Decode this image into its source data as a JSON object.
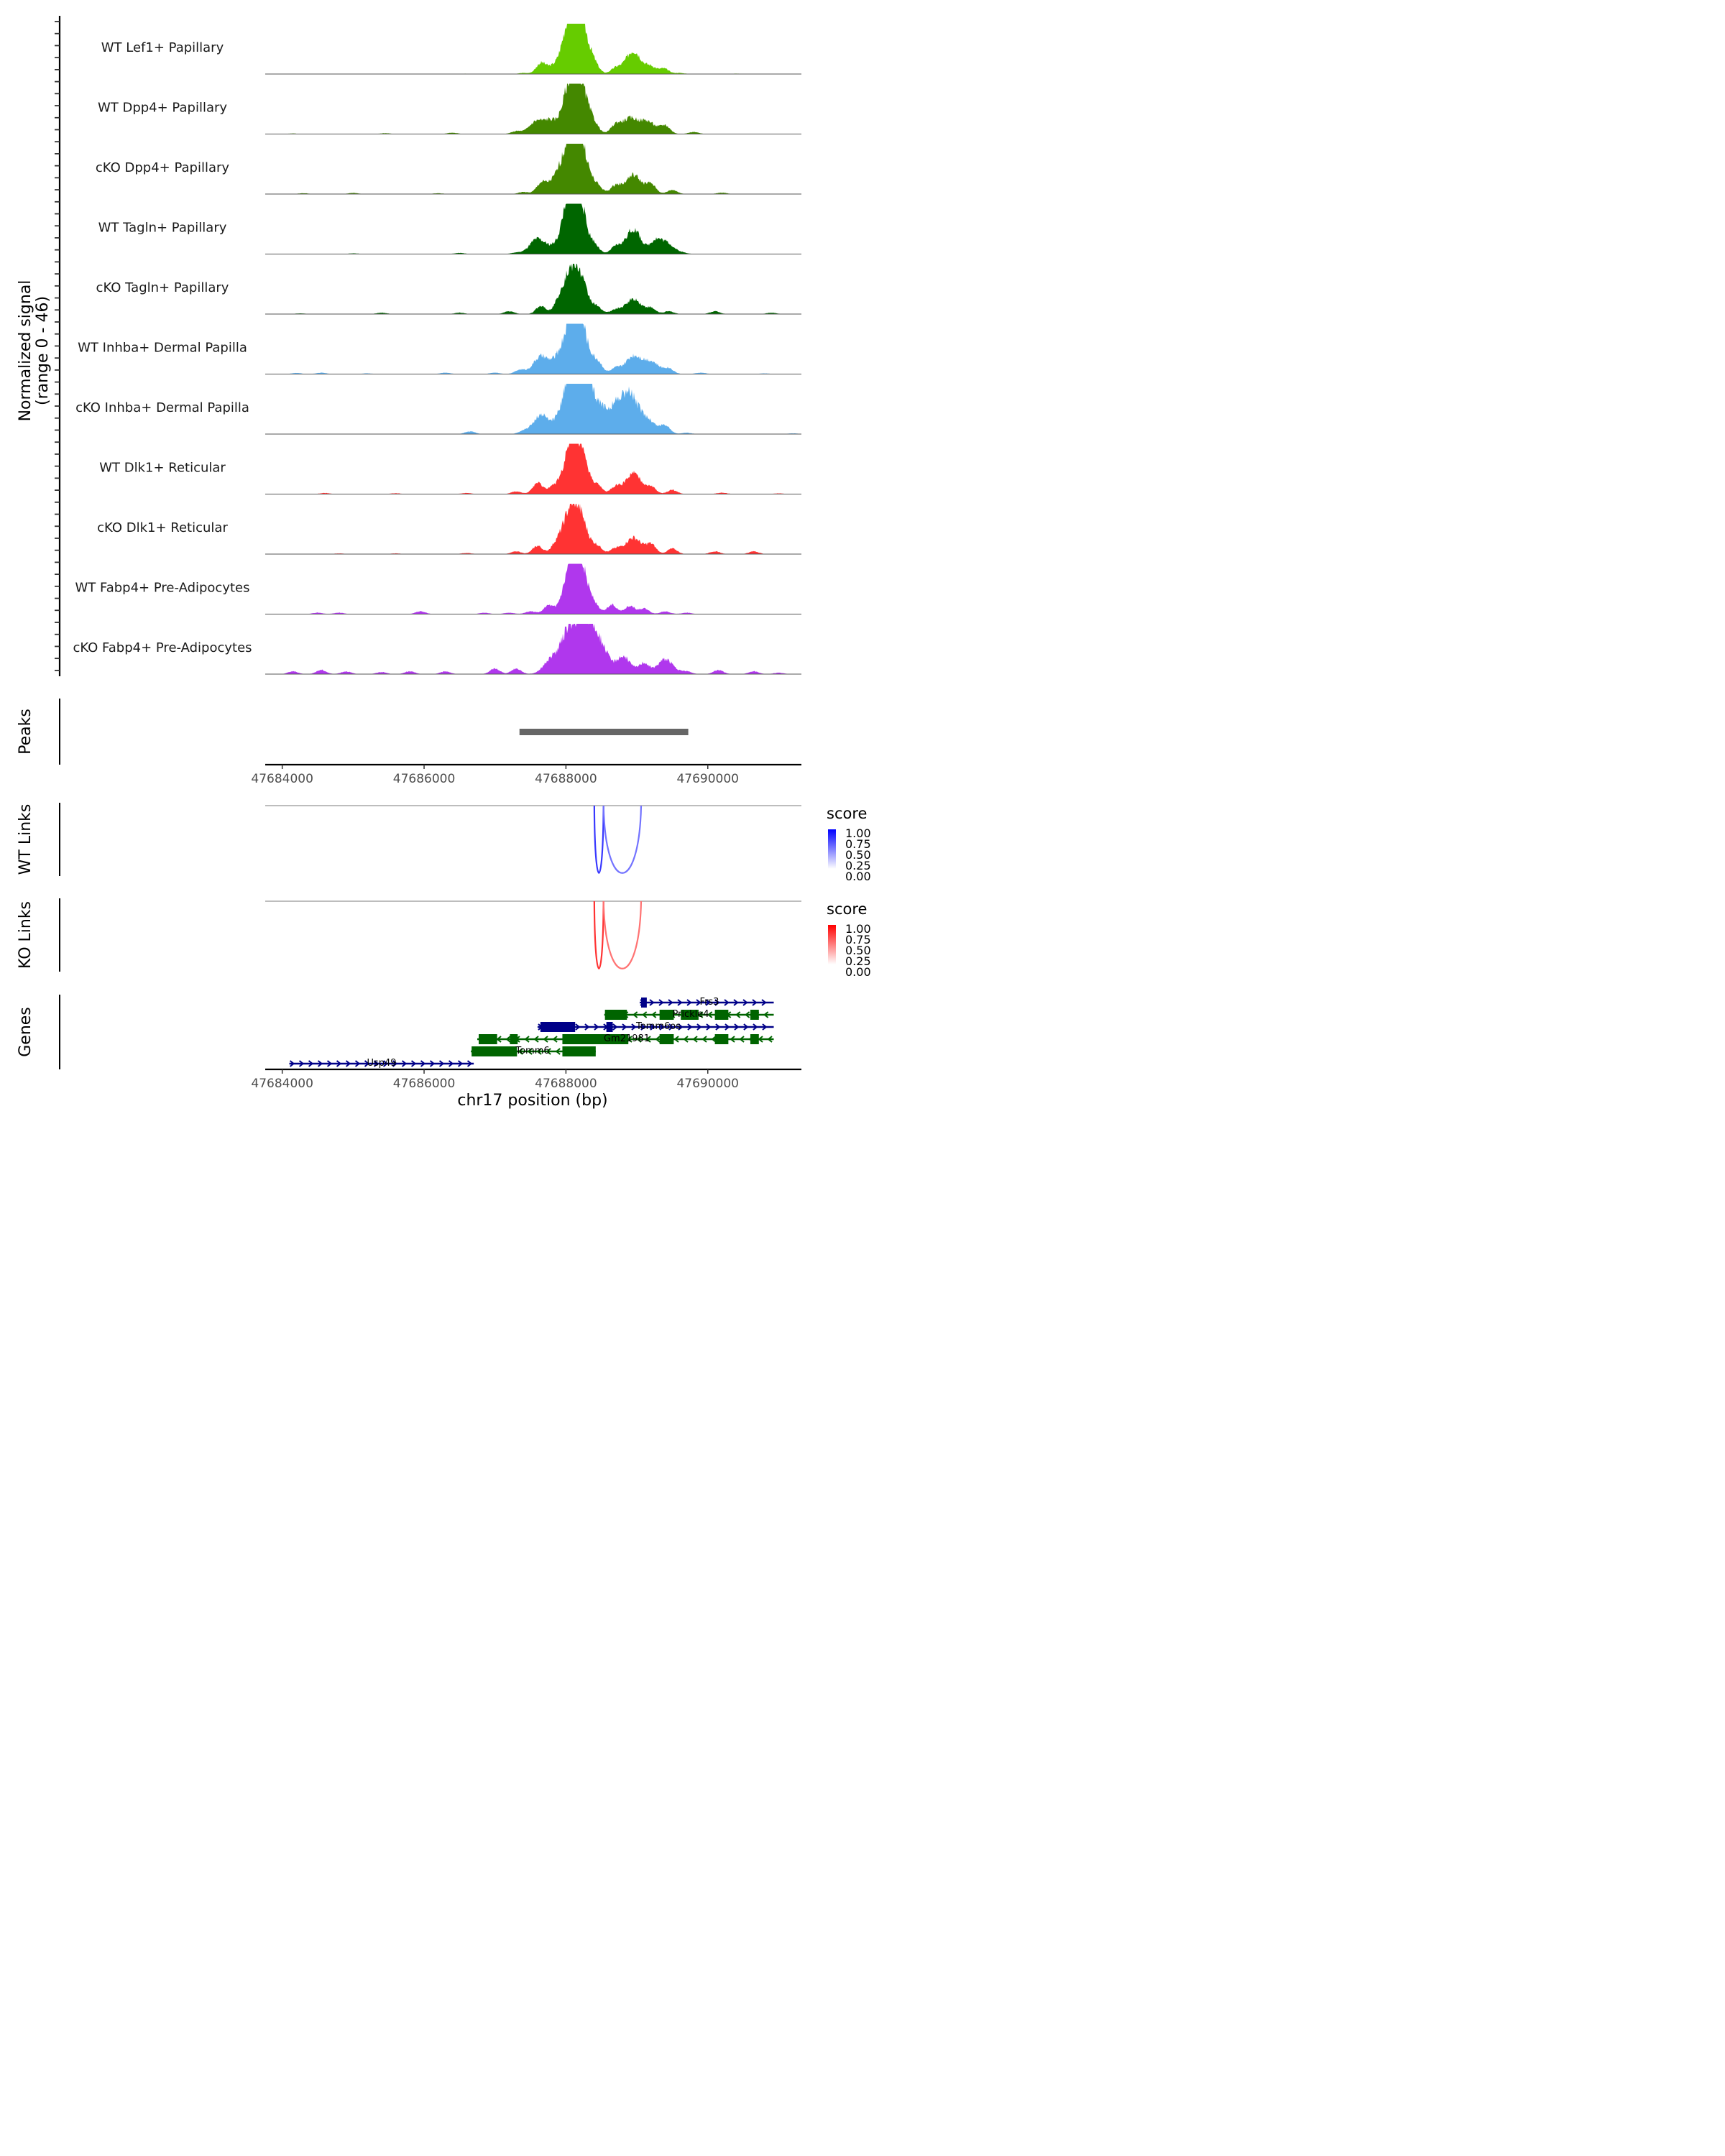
{
  "chart_data": {
    "type": "area",
    "title": "",
    "ylabel": "Normalized signal\n(range 0 - 46)",
    "ylabel_lines": [
      "Normalized signal",
      "(range 0 - 46)"
    ],
    "ylim": [
      0,
      46
    ],
    "xlabel": "chr17 position (bp)",
    "xlim": [
      47683760,
      47691320
    ],
    "x_ticks": [
      47684000,
      47686000,
      47688000,
      47690000
    ],
    "x_tick_labels": [
      "47684000",
      "47686000",
      "47688000",
      "47690000"
    ],
    "coverage_tracks": [
      {
        "name": "WT Lef1+ Papillary",
        "color": "#66CC00",
        "peaks": [
          [
            47686600,
            0.3
          ],
          [
            47687400,
            0.8
          ],
          [
            47687650,
            8
          ],
          [
            47687800,
            3.5
          ],
          [
            47688050,
            33
          ],
          [
            47688200,
            36
          ],
          [
            47688400,
            5
          ],
          [
            47688700,
            4
          ],
          [
            47688950,
            17
          ],
          [
            47689200,
            5
          ],
          [
            47689380,
            4
          ],
          [
            47689600,
            0.8
          ],
          [
            47690400,
            0.3
          ]
        ]
      },
      {
        "name": "WT Dpp4+ Papillary",
        "color": "#448800",
        "peaks": [
          [
            47684150,
            0.4
          ],
          [
            47685450,
            0.6
          ],
          [
            47686400,
            1
          ],
          [
            47687300,
            2
          ],
          [
            47687600,
            10
          ],
          [
            47687780,
            7
          ],
          [
            47688050,
            30
          ],
          [
            47688200,
            32
          ],
          [
            47688400,
            5
          ],
          [
            47688700,
            6
          ],
          [
            47688900,
            11
          ],
          [
            47689150,
            9
          ],
          [
            47689400,
            6
          ],
          [
            47689800,
            1.5
          ]
        ]
      },
      {
        "name": "cKO Dpp4+ Papillary",
        "color": "#448800",
        "peaks": [
          [
            47684300,
            0.6
          ],
          [
            47685000,
            0.8
          ],
          [
            47686200,
            0.6
          ],
          [
            47687400,
            1.5
          ],
          [
            47687650,
            7
          ],
          [
            47687850,
            9
          ],
          [
            47688050,
            30
          ],
          [
            47688200,
            34
          ],
          [
            47688450,
            5
          ],
          [
            47688700,
            6
          ],
          [
            47688950,
            14
          ],
          [
            47689200,
            7
          ],
          [
            47689500,
            3
          ],
          [
            47690200,
            1
          ]
        ]
      },
      {
        "name": "WT Tagln+ Papillary",
        "color": "#006600",
        "peaks": [
          [
            47685000,
            0.5
          ],
          [
            47686500,
            0.8
          ],
          [
            47687300,
            1
          ],
          [
            47687600,
            11
          ],
          [
            47687800,
            3
          ],
          [
            47688050,
            28
          ],
          [
            47688150,
            41
          ],
          [
            47688400,
            6
          ],
          [
            47688700,
            5
          ],
          [
            47688950,
            18
          ],
          [
            47689250,
            7
          ],
          [
            47689400,
            9
          ],
          [
            47689650,
            0.8
          ]
        ]
      },
      {
        "name": "cKO Tagln+ Papillary",
        "color": "#006600",
        "peaks": [
          [
            47684250,
            0.5
          ],
          [
            47685400,
            1
          ],
          [
            47686500,
            1
          ],
          [
            47687200,
            2
          ],
          [
            47687650,
            6
          ],
          [
            47687900,
            5
          ],
          [
            47688050,
            24
          ],
          [
            47688200,
            22
          ],
          [
            47688450,
            4
          ],
          [
            47688700,
            3
          ],
          [
            47688950,
            11
          ],
          [
            47689200,
            4
          ],
          [
            47689450,
            2
          ],
          [
            47690100,
            2
          ],
          [
            47690900,
            1
          ]
        ]
      },
      {
        "name": "WT Inhba+ Dermal Papilla",
        "color": "#5DADEB",
        "peaks": [
          [
            47684200,
            0.8
          ],
          [
            47684550,
            1
          ],
          [
            47685200,
            0.5
          ],
          [
            47686300,
            1
          ],
          [
            47687000,
            1
          ],
          [
            47687350,
            3
          ],
          [
            47687650,
            13
          ],
          [
            47687850,
            5
          ],
          [
            47688050,
            30
          ],
          [
            47688200,
            34
          ],
          [
            47688450,
            8
          ],
          [
            47688700,
            4
          ],
          [
            47688950,
            13
          ],
          [
            47689200,
            9
          ],
          [
            47689450,
            4
          ],
          [
            47689900,
            1
          ],
          [
            47690800,
            0.5
          ]
        ]
      },
      {
        "name": "cKO Inhba+ Dermal Papilla",
        "color": "#5DADEB",
        "peaks": [
          [
            47686650,
            2
          ],
          [
            47687400,
            2
          ],
          [
            47687650,
            14
          ],
          [
            47687850,
            3
          ],
          [
            47688050,
            31
          ],
          [
            47688150,
            26
          ],
          [
            47688250,
            30
          ],
          [
            47688450,
            16
          ],
          [
            47688650,
            11
          ],
          [
            47688780,
            13
          ],
          [
            47688920,
            22
          ],
          [
            47689150,
            10
          ],
          [
            47689400,
            6
          ],
          [
            47689700,
            1
          ],
          [
            47691200,
            0.5
          ]
        ]
      },
      {
        "name": "WT Dlk1+ Reticular",
        "color": "#FF3333",
        "peaks": [
          [
            47684600,
            0.8
          ],
          [
            47685600,
            0.6
          ],
          [
            47686600,
            0.8
          ],
          [
            47687300,
            2
          ],
          [
            47687600,
            8
          ],
          [
            47687800,
            4
          ],
          [
            47688050,
            25
          ],
          [
            47688200,
            28
          ],
          [
            47688450,
            5
          ],
          [
            47688700,
            5
          ],
          [
            47688950,
            15
          ],
          [
            47689200,
            5
          ],
          [
            47689500,
            3
          ],
          [
            47690200,
            1
          ],
          [
            47691000,
            0.5
          ]
        ]
      },
      {
        "name": "cKO Dlk1+ Reticular",
        "color": "#FF3333",
        "peaks": [
          [
            47684800,
            0.5
          ],
          [
            47685600,
            0.5
          ],
          [
            47686600,
            0.8
          ],
          [
            47687300,
            2
          ],
          [
            47687600,
            6
          ],
          [
            47687850,
            5
          ],
          [
            47688050,
            26
          ],
          [
            47688200,
            23
          ],
          [
            47688450,
            5
          ],
          [
            47688700,
            4
          ],
          [
            47688950,
            12
          ],
          [
            47689200,
            7
          ],
          [
            47689500,
            4
          ],
          [
            47690100,
            2
          ],
          [
            47690650,
            2
          ]
        ]
      },
      {
        "name": "WT Fabp4+ Pre-Adipocytes",
        "color": "#B037ED",
        "peaks": [
          [
            47684500,
            1
          ],
          [
            47684800,
            1
          ],
          [
            47685950,
            2
          ],
          [
            47686850,
            1
          ],
          [
            47687200,
            1
          ],
          [
            47687500,
            2
          ],
          [
            47687750,
            6
          ],
          [
            47687950,
            3
          ],
          [
            47688100,
            30
          ],
          [
            47688200,
            27
          ],
          [
            47688400,
            5
          ],
          [
            47688650,
            7
          ],
          [
            47688900,
            6
          ],
          [
            47689100,
            4
          ],
          [
            47689400,
            2
          ],
          [
            47689700,
            1
          ]
        ]
      },
      {
        "name": "cKO Fabp4+ Pre-Adipocytes",
        "color": "#B037ED",
        "peaks": [
          [
            47684150,
            2
          ],
          [
            47684550,
            3
          ],
          [
            47684900,
            2
          ],
          [
            47685400,
            1.5
          ],
          [
            47685800,
            2
          ],
          [
            47686300,
            2
          ],
          [
            47687000,
            4
          ],
          [
            47687300,
            4
          ],
          [
            47687800,
            11
          ],
          [
            47688050,
            31
          ],
          [
            47688250,
            27
          ],
          [
            47688400,
            24
          ],
          [
            47688550,
            8
          ],
          [
            47688800,
            13
          ],
          [
            47689100,
            8
          ],
          [
            47689400,
            11
          ],
          [
            47689700,
            2
          ],
          [
            47690150,
            3
          ],
          [
            47690650,
            2
          ],
          [
            47691000,
            1
          ]
        ]
      }
    ],
    "peaks_track": {
      "label": "Peaks",
      "color": "#666666",
      "regions": [
        {
          "start": 47687345,
          "end": 47689725
        }
      ]
    },
    "links_tracks": [
      {
        "label": "WT Links",
        "legend_title": "score",
        "low_color": "#FFFFFF",
        "high_color": "#0000FF",
        "legend_ticks": [
          "1.00",
          "0.75",
          "0.50",
          "0.25",
          "0.00"
        ],
        "links": [
          {
            "start": 47688400,
            "end": 47688530,
            "score": 0.78
          },
          {
            "start": 47688530,
            "end": 47689060,
            "score": 0.55
          }
        ]
      },
      {
        "label": "KO Links",
        "legend_title": "score",
        "low_color": "#FFFFFF",
        "high_color": "#FF0000",
        "legend_ticks": [
          "1.00",
          "0.75",
          "0.50",
          "0.25",
          "0.00"
        ],
        "links": [
          {
            "start": 47688400,
            "end": 47688530,
            "score": 0.8
          },
          {
            "start": 47688530,
            "end": 47689060,
            "score": 0.55
          }
        ]
      }
    ],
    "genes_track": {
      "label": "Genes",
      "plus_color": "#000088",
      "minus_color": "#006400",
      "genes": [
        {
          "name": "Frs3",
          "strand": "+",
          "row": 0,
          "start": 47689040,
          "end": 47690930,
          "exons": [
            [
              47689060,
              47689140
            ]
          ]
        },
        {
          "name": "Prickle4",
          "strand": "-",
          "row": 1,
          "start": 47688540,
          "end": 47690930,
          "exons": [
            [
              47688550,
              47688860
            ],
            [
              47689320,
              47689520
            ],
            [
              47689620,
              47689870
            ],
            [
              47690100,
              47690290
            ],
            [
              47690600,
              47690720
            ]
          ]
        },
        {
          "name": "Tomm6os",
          "strand": "+",
          "row": 2,
          "start": 47687600,
          "end": 47690930,
          "exons": [
            [
              47687640,
              47688130
            ],
            [
              47688570,
              47688660
            ]
          ]
        },
        {
          "name": "Gm21981",
          "strand": "-",
          "row": 3,
          "start": 47686750,
          "end": 47690930,
          "exons": [
            [
              47686770,
              47687030
            ],
            [
              47687210,
              47687320
            ],
            [
              47687950,
              47688880
            ],
            [
              47689320,
              47689520
            ],
            [
              47690100,
              47690290
            ],
            [
              47690600,
              47690720
            ]
          ]
        },
        {
          "name": "Tomm6",
          "strand": "-",
          "row": 4,
          "start": 47686660,
          "end": 47688420,
          "exons": [
            [
              47686670,
              47687310
            ],
            [
              47687950,
              47688420
            ]
          ]
        },
        {
          "name": "Usp49",
          "strand": "+",
          "row": 5,
          "start": 47684100,
          "end": 47686700,
          "exons": []
        }
      ]
    }
  }
}
